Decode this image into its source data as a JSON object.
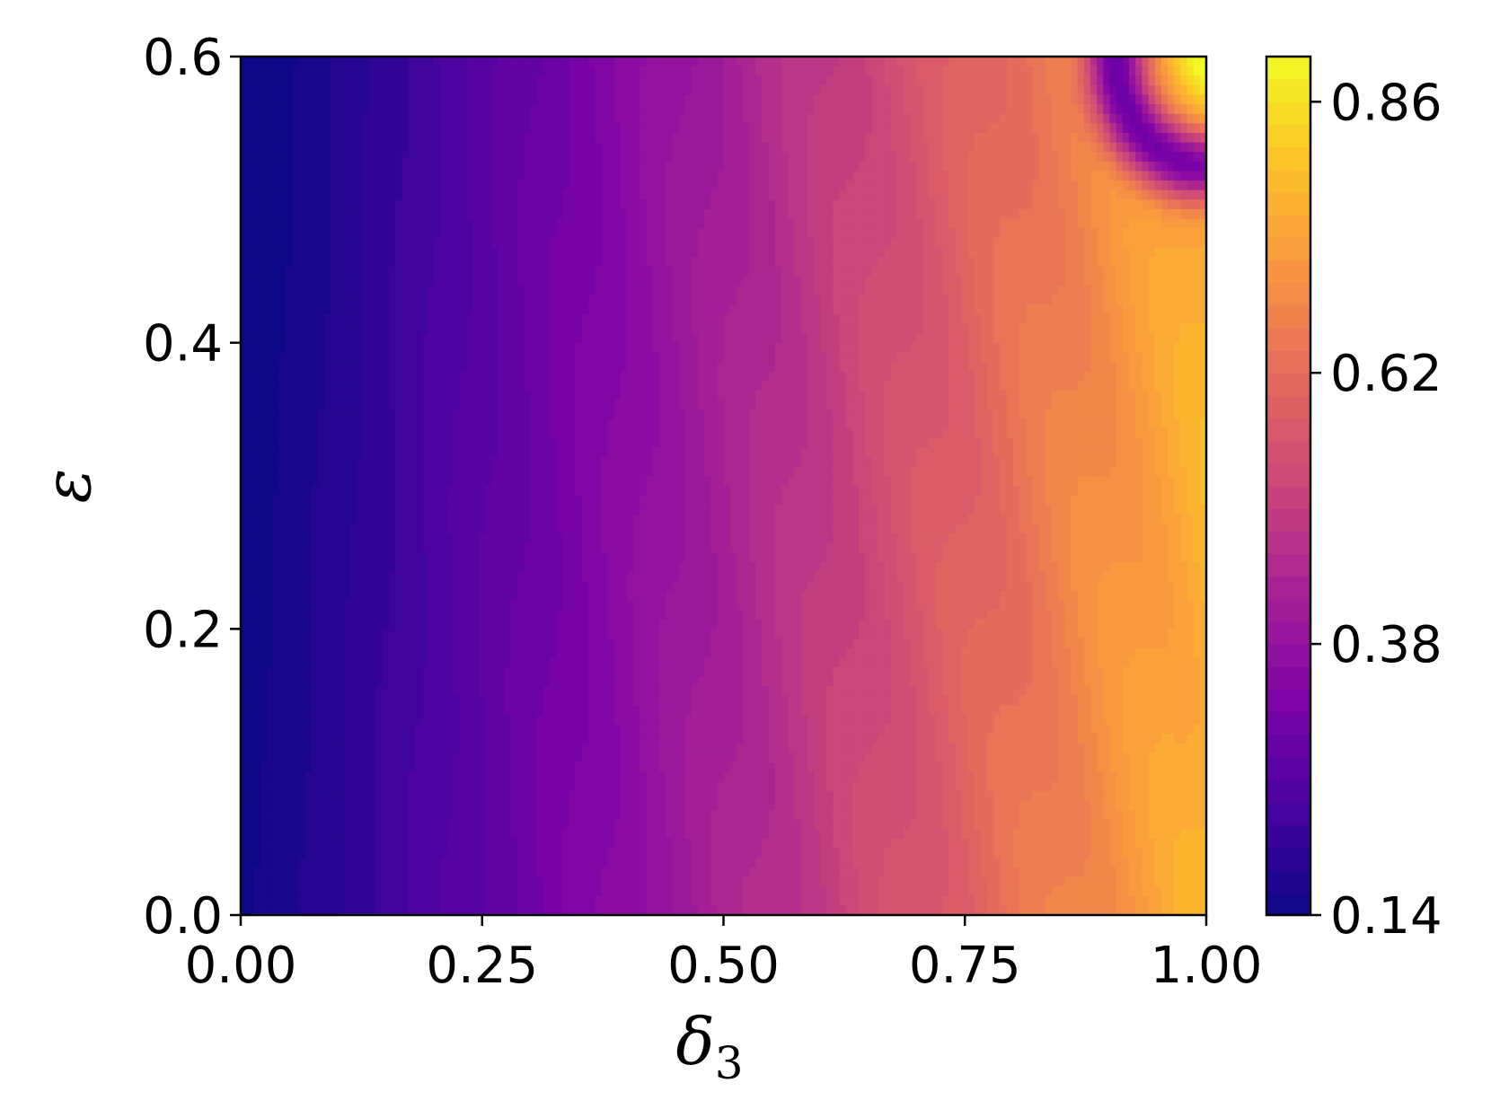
{
  "chart_data": {
    "type": "heatmap",
    "title": "",
    "xlabel": "δ",
    "xlabel_subscript": "3",
    "ylabel": "ε",
    "xlim": [
      0.0,
      1.0
    ],
    "ylim": [
      0.0,
      0.6
    ],
    "x_ticks": [
      {
        "value": 0.0,
        "label": "0.00"
      },
      {
        "value": 0.25,
        "label": "0.25"
      },
      {
        "value": 0.5,
        "label": "0.50"
      },
      {
        "value": 0.75,
        "label": "0.75"
      },
      {
        "value": 1.0,
        "label": "1.00"
      }
    ],
    "y_ticks": [
      {
        "value": 0.0,
        "label": "0.0"
      },
      {
        "value": 0.2,
        "label": "0.2"
      },
      {
        "value": 0.4,
        "label": "0.4"
      },
      {
        "value": 0.6,
        "label": "0.6"
      }
    ],
    "colorbar": {
      "colormap": "plasma",
      "range": [
        0.14,
        0.9
      ],
      "ticks": [
        {
          "value": 0.14,
          "label": "0.14"
        },
        {
          "value": 0.38,
          "label": "0.38"
        },
        {
          "value": 0.62,
          "label": "0.62"
        },
        {
          "value": 0.86,
          "label": "0.86"
        }
      ]
    },
    "grid": false,
    "description_values": {
      "x": [
        0.0,
        0.25,
        0.5,
        0.75,
        0.95,
        1.0
      ],
      "z_at_low_epsilon": [
        0.15,
        0.3,
        0.45,
        0.62,
        0.78,
        0.8
      ],
      "dip_near_top_right": {
        "x": [
          0.9,
          1.0
        ],
        "y": [
          0.5,
          0.6
        ],
        "z_min": 0.36
      }
    }
  }
}
